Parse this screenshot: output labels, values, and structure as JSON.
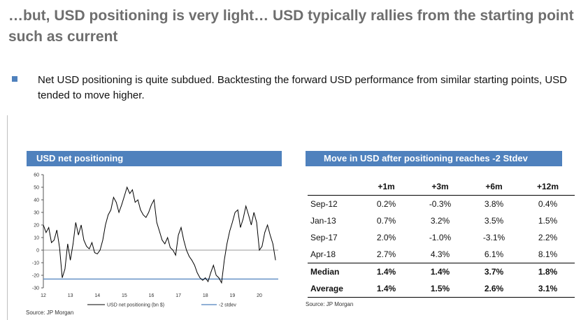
{
  "slide": {
    "title": "…but, USD positioning is very light… USD typically rallies from the starting point such as current",
    "bullet": "Net USD positioning is quite subdued. Backtesting the forward USD performance from similar starting points, USD tended to move higher."
  },
  "left_panel": {
    "header": "USD net positioning",
    "source": "Source: JP Morgan"
  },
  "right_panel": {
    "header": "Move in USD  after positioning reaches -2 Stdev",
    "source": "Source: JP Morgan",
    "columns": [
      "",
      "+1m",
      "+3m",
      "+6m",
      "+12m"
    ],
    "rows": [
      {
        "label": "Sep-12",
        "values": [
          "0.2%",
          "-0.3%",
          "3.8%",
          "0.4%"
        ]
      },
      {
        "label": "Jan-13",
        "values": [
          "0.7%",
          "3.2%",
          "3.5%",
          "1.5%"
        ]
      },
      {
        "label": "Sep-17",
        "values": [
          "2.0%",
          "-1.0%",
          "-3.1%",
          "2.2%"
        ]
      },
      {
        "label": "Apr-18",
        "values": [
          "2.7%",
          "4.3%",
          "6.1%",
          "8.1%"
        ]
      },
      {
        "label": "Median",
        "values": [
          "1.4%",
          "1.4%",
          "3.7%",
          "1.8%"
        ]
      },
      {
        "label": "Average",
        "values": [
          "1.4%",
          "1.5%",
          "2.6%",
          "3.1%"
        ]
      }
    ]
  },
  "chart_data": {
    "type": "line",
    "title": "USD net positioning",
    "xlabel": "",
    "ylabel": "",
    "ylim": [
      -30,
      60
    ],
    "xlim": [
      2012,
      2020.7
    ],
    "yticks": [
      60,
      50,
      40,
      30,
      20,
      10,
      0,
      -10,
      -20,
      -30
    ],
    "xticks": [
      "12",
      "13",
      "14",
      "15",
      "16",
      "17",
      "18",
      "19",
      "20"
    ],
    "legend_position": "bottom",
    "series": [
      {
        "name": "USD net positioning (bn $)",
        "color": "#000000",
        "x": [
          2012.0,
          2012.1,
          2012.2,
          2012.3,
          2012.4,
          2012.5,
          2012.6,
          2012.7,
          2012.8,
          2012.9,
          2013.0,
          2013.1,
          2013.2,
          2013.3,
          2013.4,
          2013.5,
          2013.6,
          2013.7,
          2013.8,
          2013.9,
          2014.0,
          2014.1,
          2014.2,
          2014.3,
          2014.4,
          2014.5,
          2014.6,
          2014.7,
          2014.8,
          2014.9,
          2015.0,
          2015.1,
          2015.2,
          2015.3,
          2015.4,
          2015.5,
          2015.6,
          2015.7,
          2015.8,
          2015.9,
          2016.0,
          2016.1,
          2016.2,
          2016.3,
          2016.4,
          2016.5,
          2016.6,
          2016.7,
          2016.8,
          2016.9,
          2017.0,
          2017.1,
          2017.2,
          2017.3,
          2017.4,
          2017.5,
          2017.6,
          2017.7,
          2017.8,
          2017.9,
          2018.0,
          2018.1,
          2018.2,
          2018.3,
          2018.4,
          2018.5,
          2018.6,
          2018.7,
          2018.8,
          2018.9,
          2019.0,
          2019.1,
          2019.2,
          2019.3,
          2019.4,
          2019.5,
          2019.6,
          2019.7,
          2019.8,
          2019.9,
          2020.0,
          2020.1,
          2020.2,
          2020.3,
          2020.4,
          2020.5,
          2020.6
        ],
        "values": [
          20,
          14,
          18,
          6,
          8,
          16,
          2,
          -22,
          -15,
          5,
          -8,
          5,
          22,
          12,
          20,
          8,
          3,
          1,
          6,
          -2,
          -3,
          0,
          8,
          20,
          28,
          32,
          42,
          38,
          30,
          36,
          43,
          50,
          45,
          48,
          38,
          40,
          32,
          28,
          26,
          30,
          36,
          40,
          22,
          15,
          8,
          5,
          10,
          2,
          0,
          -4,
          12,
          18,
          8,
          0,
          -5,
          -8,
          -12,
          -18,
          -22,
          -24,
          -22,
          -25,
          -18,
          -12,
          -20,
          -22,
          -26,
          -8,
          5,
          15,
          22,
          30,
          32,
          18,
          25,
          35,
          28,
          20,
          30,
          22,
          0,
          3,
          14,
          20,
          12,
          5,
          -8
        ]
      },
      {
        "name": "-2 stdev",
        "color": "#4f81bd",
        "values": [
          -23
        ]
      }
    ]
  }
}
